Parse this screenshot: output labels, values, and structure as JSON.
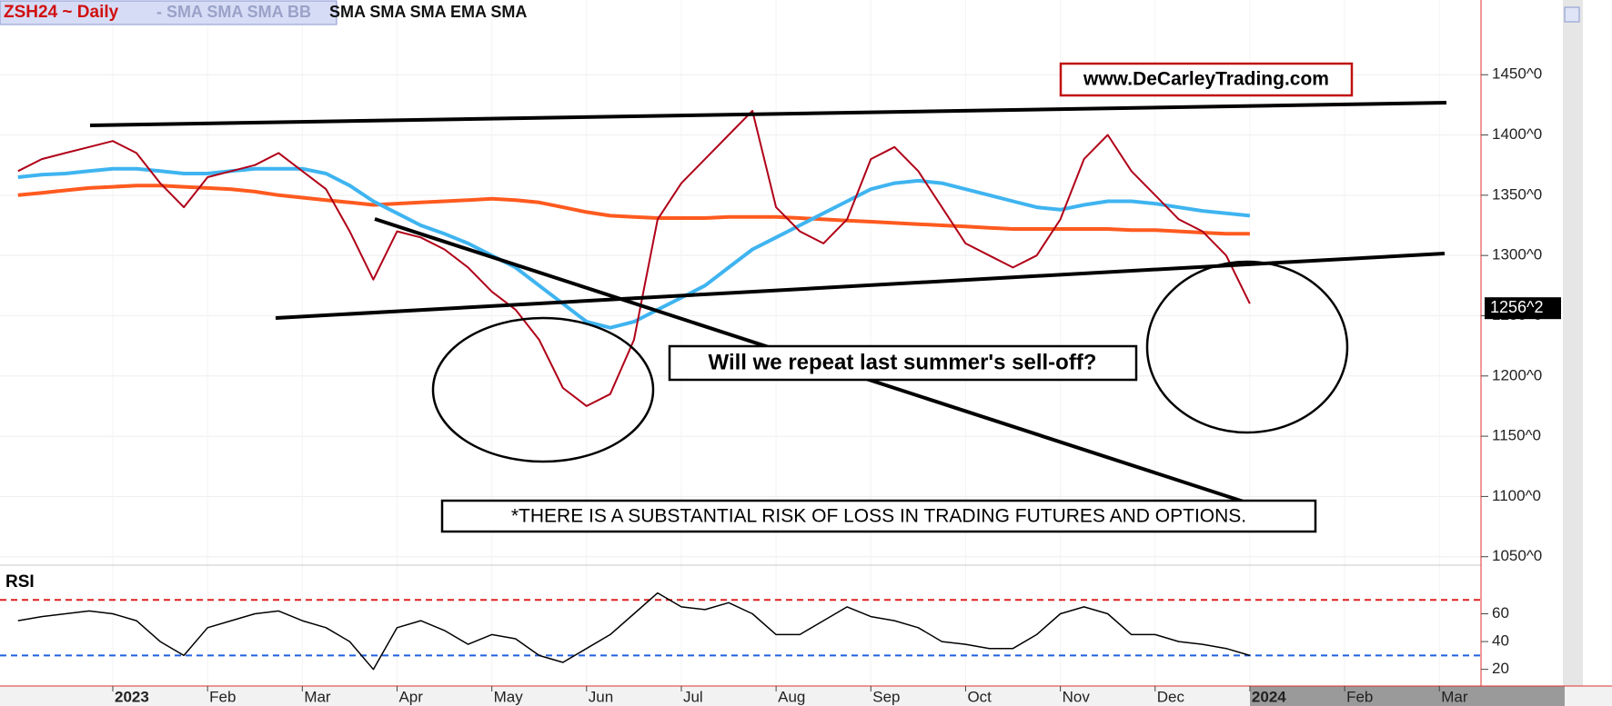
{
  "chart_data": [
    {
      "type": "line",
      "title": "ZSH24 ~ Daily",
      "indicators": [
        "-  SMA SMA SMA BB",
        "SMA SMA SMA EMA SMA"
      ],
      "annotations": [
        "www.DeCarleyTrading.com",
        "Will we repeat last summer's sell-off?",
        "*THERE IS A SUBSTANTIAL RISK OF LOSS IN TRADING FUTURES AND OPTIONS."
      ],
      "categories": [
        null,
        null,
        null,
        null,
        "2023",
        null,
        null,
        null,
        "Feb",
        null,
        null,
        null,
        "Mar",
        null,
        null,
        null,
        "Apr",
        null,
        null,
        null,
        "May",
        null,
        null,
        null,
        "Jun",
        null,
        null,
        null,
        "Jul",
        null,
        null,
        null,
        "Aug",
        null,
        null,
        null,
        "Sep",
        null,
        null,
        null,
        "Oct",
        null,
        null,
        null,
        "Nov",
        null,
        null,
        null,
        "Dec",
        null,
        null,
        null,
        "2024",
        null,
        null,
        null,
        "Feb",
        null,
        null,
        null,
        "Mar"
      ],
      "series": [
        {
          "color": "#ff5a1f",
          "width": 4,
          "values": [
            1350,
            1352,
            1354,
            1356,
            1357,
            1358,
            1358,
            1357,
            1356,
            1355,
            1353,
            1350,
            1348,
            1346,
            1344,
            1342,
            1343,
            1344,
            1345,
            1346,
            1347,
            1346,
            1344,
            1340,
            1336,
            1333,
            1332,
            1331,
            1331,
            1331,
            1332,
            1332,
            1332,
            1331,
            1330,
            1329,
            1328,
            1327,
            1326,
            1325,
            1324,
            1323,
            1322,
            1322,
            1322,
            1322,
            1322,
            1321,
            1321,
            1320,
            1319,
            1318,
            1318,
            null,
            null,
            null,
            null,
            null,
            null,
            null,
            null
          ]
        },
        {
          "color": "#3fb4f0",
          "width": 4,
          "values": [
            1365,
            1367,
            1368,
            1370,
            1372,
            1372,
            1370,
            1368,
            1368,
            1370,
            1372,
            1372,
            1372,
            1368,
            1358,
            1345,
            1335,
            1325,
            1318,
            1310,
            1300,
            1290,
            1275,
            1260,
            1245,
            1240,
            1245,
            1255,
            1265,
            1275,
            1290,
            1305,
            1315,
            1325,
            1335,
            1345,
            1355,
            1360,
            1362,
            1360,
            1355,
            1350,
            1345,
            1340,
            1338,
            1342,
            1345,
            1345,
            1343,
            1340,
            1337,
            1335,
            1333,
            null,
            null,
            null,
            null,
            null,
            null,
            null,
            null
          ]
        },
        {
          "color": "#b00018",
          "width": 2,
          "values": [
            1370,
            1380,
            1385,
            1390,
            1395,
            1385,
            1360,
            1340,
            1365,
            1370,
            1375,
            1385,
            1370,
            1355,
            1320,
            1280,
            1320,
            1315,
            1305,
            1290,
            1270,
            1255,
            1230,
            1190,
            1175,
            1185,
            1230,
            1330,
            1360,
            1380,
            1400,
            1420,
            1340,
            1320,
            1310,
            1330,
            1380,
            1390,
            1370,
            1340,
            1310,
            1300,
            1290,
            1300,
            1330,
            1380,
            1400,
            1370,
            1350,
            1330,
            1320,
            1300,
            1260,
            null,
            null,
            null,
            null,
            null,
            null,
            null,
            null
          ]
        }
      ],
      "ylim": [
        1043,
        1512
      ],
      "yticks": [
        {
          "value": 1050,
          "label": "1050^0"
        },
        {
          "value": 1100,
          "label": "1100^0"
        },
        {
          "value": 1150,
          "label": "1150^0"
        },
        {
          "value": 1200,
          "label": "1200^0"
        },
        {
          "value": 1250,
          "label": "1250^0"
        },
        {
          "value": 1300,
          "label": "1300^0"
        },
        {
          "value": 1350,
          "label": "1350^0"
        },
        {
          "value": 1400,
          "label": "1400^0"
        },
        {
          "value": 1450,
          "label": "1450^0"
        }
      ],
      "last_price": {
        "value": 1256.25,
        "label": "1256^2"
      },
      "grid": true
    },
    {
      "type": "line",
      "title": "RSI",
      "series": [
        {
          "color": "#000000",
          "width": 1.5,
          "values": [
            55,
            58,
            60,
            62,
            60,
            55,
            40,
            30,
            50,
            55,
            60,
            62,
            55,
            50,
            40,
            20,
            50,
            55,
            48,
            38,
            45,
            42,
            30,
            25,
            35,
            45,
            60,
            75,
            65,
            63,
            68,
            60,
            45,
            45,
            55,
            65,
            58,
            55,
            50,
            40,
            38,
            35,
            35,
            45,
            60,
            65,
            60,
            45,
            45,
            40,
            38,
            35,
            30,
            null,
            null,
            null,
            null,
            null,
            null,
            null,
            null
          ]
        }
      ],
      "ylim": [
        8,
        95
      ],
      "yticks": [
        20,
        40,
        60
      ],
      "reference_lines": [
        {
          "value": 70,
          "color": "#e02020"
        },
        {
          "value": 30,
          "color": "#2060e0"
        }
      ]
    }
  ]
}
